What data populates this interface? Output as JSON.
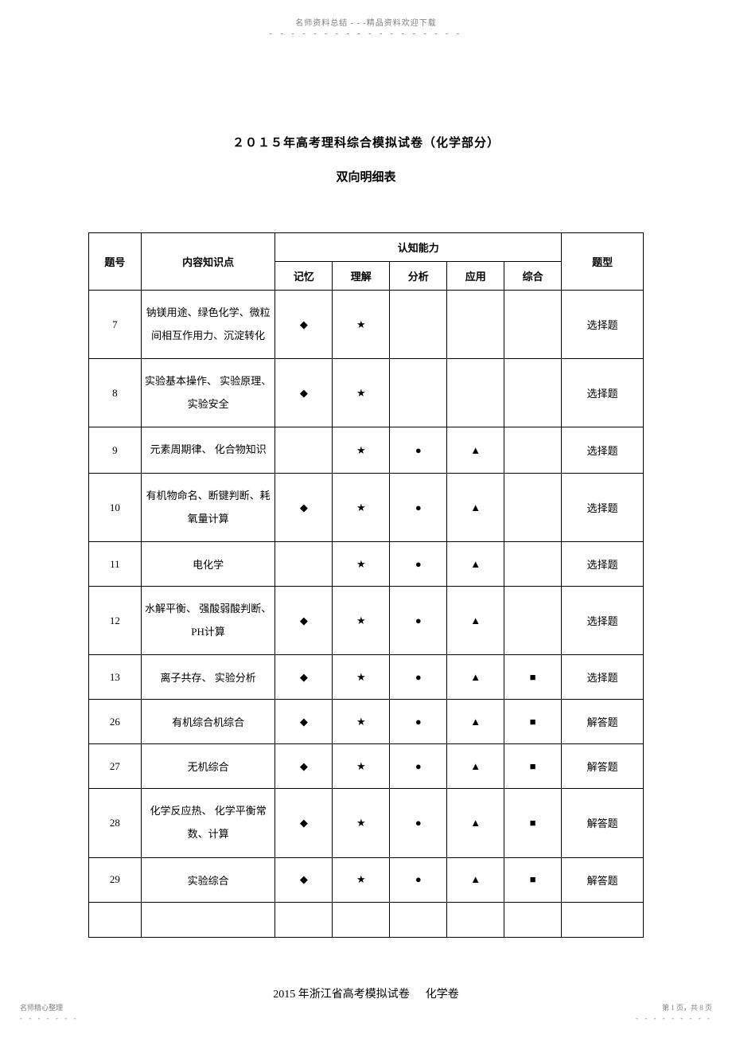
{
  "header": {
    "text": "名师资料总结 - - -精品资料欢迎下载",
    "dots": "- - - - - - - - - - - - - - - - - -"
  },
  "title": "２０１５年高考理科综合模拟试卷（化学部分）",
  "subtitle": "双向明细表",
  "table": {
    "headers": {
      "col1": "题号",
      "col2": "内容知识点",
      "col3_group": "认知能力",
      "col3_sub": [
        "记忆",
        "理解",
        "分析",
        "应用",
        "综合"
      ],
      "col4": "题型"
    },
    "rows": [
      {
        "num": "7",
        "content": "钠镁用途、绿色化学、微粒间相互作用力、沉淀转化",
        "marks": [
          "◆",
          "★",
          "",
          "",
          ""
        ],
        "type": "选择题"
      },
      {
        "num": "8",
        "content": "实验基本操作、 实验原理、实验安全",
        "marks": [
          "◆",
          "★",
          "",
          "",
          ""
        ],
        "type": "选择题"
      },
      {
        "num": "9",
        "content": "元素周期律、 化合物知识",
        "marks": [
          "",
          "★",
          "●",
          "▲",
          ""
        ],
        "type": "选择题"
      },
      {
        "num": "10",
        "content": "有机物命名、断键判断、耗氧量计算",
        "marks": [
          "◆",
          "★",
          "●",
          "▲",
          ""
        ],
        "type": "选择题"
      },
      {
        "num": "11",
        "content": "电化学",
        "marks": [
          "",
          "★",
          "●",
          "▲",
          ""
        ],
        "type": "选择题"
      },
      {
        "num": "12",
        "content": "水解平衡、 强酸弱酸判断、 PH计算",
        "marks": [
          "◆",
          "★",
          "●",
          "▲",
          ""
        ],
        "type": "选择题"
      },
      {
        "num": "13",
        "content": "离子共存、 实验分析",
        "marks": [
          "◆",
          "★",
          "●",
          "▲",
          "■"
        ],
        "type": "选择题"
      },
      {
        "num": "26",
        "content": "有机综合机综合",
        "marks": [
          "◆",
          "★",
          "●",
          "▲",
          "■"
        ],
        "type": "解答题"
      },
      {
        "num": "27",
        "content": "无机综合",
        "marks": [
          "◆",
          "★",
          "●",
          "▲",
          "■"
        ],
        "type": "解答题"
      },
      {
        "num": "28",
        "content": "化学反应热、 化学平衡常数、计算",
        "marks": [
          "◆",
          "★",
          "●",
          "▲",
          "■"
        ],
        "type": "解答题"
      },
      {
        "num": "29",
        "content": "实验综合",
        "marks": [
          "◆",
          "★",
          "●",
          "▲",
          "■"
        ],
        "type": "解答题"
      }
    ]
  },
  "bottom_title": {
    "part1": "2015 年浙江省高考模拟试卷",
    "part2": "化学卷"
  },
  "footer": {
    "left_text": "名师精心整理",
    "left_dots": "- - - - - - -",
    "right_text": "第 1 页，共 8 页",
    "right_dots": "- - - - - - - - -"
  }
}
